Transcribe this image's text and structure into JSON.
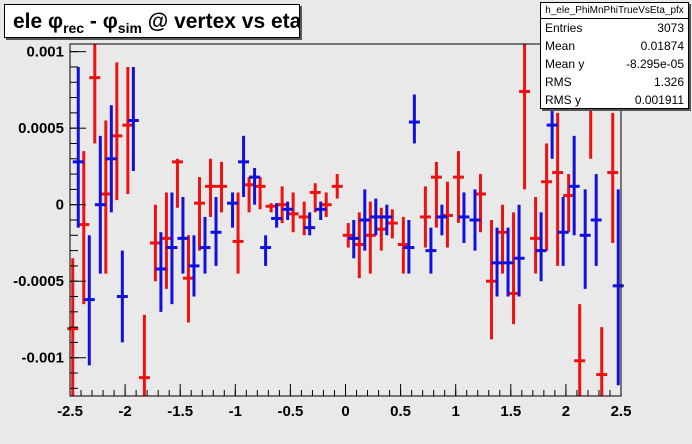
{
  "title": {
    "prefix": "ele ",
    "phi1": "φ",
    "sub1": "rec",
    "mid": " - ",
    "phi2": "φ",
    "sub2": "sim",
    "suffix": " @ vertex vs eta"
  },
  "stats": {
    "name": "h_ele_PhiMnPhiTrueVsEta_pfx",
    "rows": [
      {
        "label": "Entries",
        "value": "3073"
      },
      {
        "label": "Mean",
        "value": "0.01874"
      },
      {
        "label": "Mean y",
        "value": "-8.295e-05"
      },
      {
        "label": "RMS",
        "value": "1.326"
      },
      {
        "label": "RMS y",
        "value": "0.001911"
      }
    ]
  },
  "colors": {
    "series_a": "#ee1111",
    "series_b": "#1111dd",
    "background": "#e9e9e9",
    "frame": "#000000"
  },
  "chart_data": {
    "type": "scatter",
    "title": "ele φrec - φsim @ vertex vs eta",
    "xlim": [
      -2.5,
      2.5
    ],
    "ylim": [
      -0.00125,
      0.00105
    ],
    "x_tick_labels": [
      "-2.5",
      "-2",
      "-1.5",
      "-1",
      "-0.5",
      "0",
      "0.5",
      "1",
      "1.5",
      "2",
      "2.5"
    ],
    "y_tick_labels": [
      "-0.001",
      "-0.0005",
      "0",
      "0.0005",
      "0.001"
    ],
    "grid": false,
    "series": [
      {
        "color": "red",
        "points": [
          {
            "x": -2.475,
            "y": -0.00081,
            "lo": -0.00125,
            "hi": -0.00035
          },
          {
            "x": -2.375,
            "y": -0.00013,
            "lo": -0.00065,
            "hi": 0.00035
          },
          {
            "x": -2.275,
            "y": 0.00083,
            "lo": 0.0004,
            "hi": 0.00105
          },
          {
            "x": -2.175,
            "y": 7e-05,
            "lo": -0.00045,
            "hi": 0.00055
          },
          {
            "x": -2.075,
            "y": 0.00045,
            "lo": 3e-05,
            "hi": 0.00093
          },
          {
            "x": -1.975,
            "y": 0.00052,
            "lo": 7e-05,
            "hi": 0.0009
          },
          {
            "x": -1.825,
            "y": -0.00113,
            "lo": -0.00125,
            "hi": -0.00072
          },
          {
            "x": -1.725,
            "y": -0.00025,
            "lo": -0.0005,
            "hi": 0.0
          },
          {
            "x": -1.625,
            "y": -0.00022,
            "lo": -0.00055,
            "hi": 8e-05
          },
          {
            "x": -1.525,
            "y": 0.00028,
            "lo": -2e-05,
            "hi": 0.0003
          },
          {
            "x": -1.425,
            "y": -0.00048,
            "lo": -0.00077,
            "hi": -0.0002
          },
          {
            "x": -1.325,
            "y": 1e-05,
            "lo": -0.0003,
            "hi": 0.00018
          },
          {
            "x": -1.225,
            "y": 0.00012,
            "lo": -8e-05,
            "hi": 0.0003
          },
          {
            "x": -1.125,
            "y": 0.00012,
            "lo": -5e-05,
            "hi": 0.00028
          },
          {
            "x": -0.975,
            "y": -0.00024,
            "lo": -0.00045,
            "hi": 8e-05
          },
          {
            "x": -0.875,
            "y": 0.00013,
            "lo": -5e-05,
            "hi": 0.00018
          },
          {
            "x": -0.775,
            "y": 0.00012,
            "lo": -3e-05,
            "hi": 0.00018
          },
          {
            "x": -0.675,
            "y": -1e-05,
            "lo": -5e-05,
            "hi": 1e-05
          },
          {
            "x": -0.575,
            "y": 0.0,
            "lo": -0.00012,
            "hi": 0.00012
          },
          {
            "x": -0.475,
            "y": -6e-05,
            "lo": -0.00018,
            "hi": 8e-05
          },
          {
            "x": -0.375,
            "y": -8e-05,
            "lo": -0.0002,
            "hi": 2e-05
          },
          {
            "x": -0.275,
            "y": 8e-05,
            "lo": -5e-05,
            "hi": 0.00014
          },
          {
            "x": -0.175,
            "y": 0.0,
            "lo": -8e-05,
            "hi": 8e-05
          },
          {
            "x": -0.075,
            "y": 0.00012,
            "lo": 4e-05,
            "hi": 0.0002
          },
          {
            "x": 0.025,
            "y": -0.0002,
            "lo": -0.00028,
            "hi": -0.00012
          },
          {
            "x": 0.125,
            "y": -0.00026,
            "lo": -0.00048,
            "hi": -5e-05
          },
          {
            "x": 0.225,
            "y": -0.0002,
            "lo": -0.00045,
            "hi": 2e-05
          },
          {
            "x": 0.325,
            "y": -0.00016,
            "lo": -0.0003,
            "hi": -2e-05
          },
          {
            "x": 0.425,
            "y": -0.00012,
            "lo": -0.00022,
            "hi": -3e-05
          },
          {
            "x": 0.525,
            "y": -0.00026,
            "lo": -0.00045,
            "hi": -8e-05
          },
          {
            "x": 0.725,
            "y": -8e-05,
            "lo": -0.00028,
            "hi": 0.00012
          },
          {
            "x": 0.825,
            "y": 0.00018,
            "lo": -0.00015,
            "hi": 0.00028
          },
          {
            "x": 0.925,
            "y": -7e-05,
            "lo": -0.00028,
            "hi": 0.00015
          },
          {
            "x": 1.025,
            "y": 0.00018,
            "lo": -0.00012,
            "hi": 0.00035
          },
          {
            "x": 1.225,
            "y": 7e-05,
            "lo": -0.00018,
            "hi": 0.0002
          },
          {
            "x": 1.325,
            "y": -0.0005,
            "lo": -0.00088,
            "hi": -0.0001
          },
          {
            "x": 1.425,
            "y": -0.00018,
            "lo": -0.00045,
            "hi": 0.0
          },
          {
            "x": 1.525,
            "y": -0.00058,
            "lo": -0.00078,
            "hi": -5e-05
          },
          {
            "x": 1.625,
            "y": 0.00074,
            "lo": 0.0001,
            "hi": 0.00105
          },
          {
            "x": 1.725,
            "y": -0.00022,
            "lo": -0.00045,
            "hi": 5e-05
          },
          {
            "x": 1.825,
            "y": 0.00015,
            "lo": -0.0003,
            "hi": 0.0004
          },
          {
            "x": 1.925,
            "y": 0.00021,
            "lo": -0.0004,
            "hi": 0.0006
          },
          {
            "x": 2.025,
            "y": 6e-05,
            "lo": -0.00018,
            "hi": 0.0002
          },
          {
            "x": 2.125,
            "y": -0.00102,
            "lo": -0.00125,
            "hi": -0.00065
          },
          {
            "x": 2.225,
            "y": 0.00079,
            "lo": 0.0003,
            "hi": 0.00105
          },
          {
            "x": 2.325,
            "y": -0.00111,
            "lo": -0.00125,
            "hi": -0.0008
          },
          {
            "x": 2.425,
            "y": 0.00021,
            "lo": -0.00025,
            "hi": 0.0006
          }
        ]
      },
      {
        "color": "blue",
        "points": [
          {
            "x": -2.425,
            "y": 0.00028,
            "lo": -0.00015,
            "hi": 0.0009
          },
          {
            "x": -2.325,
            "y": -0.00062,
            "lo": -0.00105,
            "hi": -0.0002
          },
          {
            "x": -2.225,
            "y": 0.0,
            "lo": -0.00045,
            "hi": 0.00045
          },
          {
            "x": -2.125,
            "y": 0.0003,
            "lo": -5e-05,
            "hi": 0.00065
          },
          {
            "x": -2.025,
            "y": -0.0006,
            "lo": -0.0009,
            "hi": -0.0003
          },
          {
            "x": -1.925,
            "y": 0.00055,
            "lo": 0.00022,
            "hi": 0.0009
          },
          {
            "x": -1.675,
            "y": -0.00042,
            "lo": -0.0007,
            "hi": -0.00018
          },
          {
            "x": -1.575,
            "y": -0.00028,
            "lo": -0.00065,
            "hi": 8e-05
          },
          {
            "x": -1.475,
            "y": -0.00022,
            "lo": -0.00045,
            "hi": 5e-05
          },
          {
            "x": -1.375,
            "y": -0.0004,
            "lo": -0.0006,
            "hi": -0.0002
          },
          {
            "x": -1.275,
            "y": -0.00028,
            "lo": -0.00045,
            "hi": -8e-05
          },
          {
            "x": -1.175,
            "y": -0.00018,
            "lo": -0.0004,
            "hi": 5e-05
          },
          {
            "x": -1.025,
            "y": 1e-05,
            "lo": -0.00015,
            "hi": 8e-05
          },
          {
            "x": -0.925,
            "y": 0.00028,
            "lo": 5e-05,
            "hi": 0.00045
          },
          {
            "x": -0.825,
            "y": 0.00018,
            "lo": 0.0,
            "hi": 0.00024
          },
          {
            "x": -0.725,
            "y": -0.00028,
            "lo": -0.0004,
            "hi": -0.0002
          },
          {
            "x": -0.625,
            "y": -9e-05,
            "lo": -0.00015,
            "hi": 1e-05
          },
          {
            "x": -0.525,
            "y": -3e-05,
            "lo": -0.0001,
            "hi": 2e-05
          },
          {
            "x": -0.325,
            "y": -0.00015,
            "lo": -0.0002,
            "hi": -5e-05
          },
          {
            "x": -0.225,
            "y": -3e-05,
            "lo": -0.0001,
            "hi": 2e-05
          },
          {
            "x": 0.075,
            "y": -0.00022,
            "lo": -0.00035,
            "hi": -0.0001
          },
          {
            "x": 0.175,
            "y": -0.0001,
            "lo": -0.0003,
            "hi": 0.0001
          },
          {
            "x": 0.275,
            "y": -8e-05,
            "lo": -0.0002,
            "hi": 4e-05
          },
          {
            "x": 0.375,
            "y": -8e-05,
            "lo": -0.0002,
            "hi": 0.0
          },
          {
            "x": 0.575,
            "y": -0.00028,
            "lo": -0.00045,
            "hi": -0.0001
          },
          {
            "x": 0.625,
            "y": 0.00054,
            "lo": 0.0004,
            "hi": 0.00072
          },
          {
            "x": 0.775,
            "y": -0.0003,
            "lo": -0.00045,
            "hi": -0.00015
          },
          {
            "x": 0.875,
            "y": -8e-05,
            "lo": -0.0002,
            "hi": 0.0
          },
          {
            "x": 1.075,
            "y": -8e-05,
            "lo": -0.00025,
            "hi": 8e-05
          },
          {
            "x": 1.175,
            "y": -0.0001,
            "lo": -0.0003,
            "hi": 0.0001
          },
          {
            "x": 1.375,
            "y": -0.00038,
            "lo": -0.0006,
            "hi": -0.00015
          },
          {
            "x": 1.475,
            "y": -0.00038,
            "lo": -0.0006,
            "hi": -0.00015
          },
          {
            "x": 1.575,
            "y": -0.00035,
            "lo": -0.0006,
            "hi": 0.0
          },
          {
            "x": 1.775,
            "y": -0.0003,
            "lo": -0.0005,
            "hi": -5e-05
          },
          {
            "x": 1.875,
            "y": 0.00052,
            "lo": 0.0003,
            "hi": 0.0009
          },
          {
            "x": 1.975,
            "y": -0.00018,
            "lo": -0.0004,
            "hi": 5e-05
          },
          {
            "x": 2.075,
            "y": 0.00012,
            "lo": -0.0002,
            "hi": 0.00045
          },
          {
            "x": 2.175,
            "y": -0.0002,
            "lo": -0.00055,
            "hi": 0.0001
          },
          {
            "x": 2.275,
            "y": -0.0001,
            "lo": -0.0004,
            "hi": 0.0002
          },
          {
            "x": 2.475,
            "y": -0.00053,
            "lo": -0.00118,
            "hi": 0.0001
          }
        ]
      }
    ]
  }
}
